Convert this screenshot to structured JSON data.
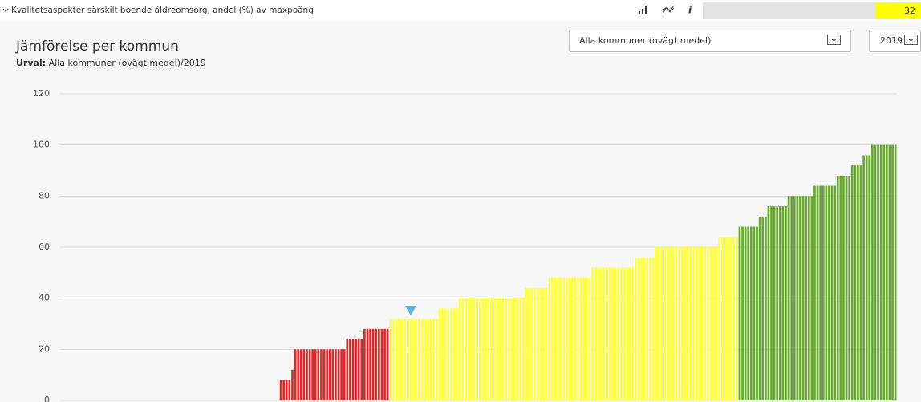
{
  "header": {
    "title": "Kvalitetsaspekter särskilt boende äldreomsorg, andel (%) av maxpoäng",
    "value": 32
  },
  "panel": {
    "title": "Jämförelse per kommun",
    "selection_label": "Urval:",
    "selection": "Alla kommuner (ovägt medel)/2019",
    "dropdown": "Alla kommuner (ovägt medel)",
    "year": "2019"
  },
  "chart_data": {
    "type": "bar",
    "ylim": [
      0,
      120
    ],
    "yticks": [
      0,
      20,
      40,
      60,
      80,
      100,
      120
    ],
    "grid": true,
    "series": [
      {
        "color": "#d62b2b",
        "values": [
          0,
          0,
          0,
          0,
          0,
          0,
          0,
          0,
          0,
          0,
          0,
          0,
          0,
          0,
          0,
          0,
          0,
          0,
          0,
          0,
          0,
          0,
          0,
          0,
          0,
          0,
          0,
          0,
          0,
          0,
          0,
          0,
          0,
          0,
          0,
          0,
          0,
          0,
          0,
          0,
          0,
          0,
          0,
          0,
          0,
          0,
          0,
          0,
          0,
          0,
          0,
          0,
          0,
          0,
          0,
          0,
          0,
          0,
          0,
          0,
          0,
          0,
          0,
          0,
          0,
          0,
          0,
          0,
          0,
          0,
          0,
          0,
          0,
          0,
          0,
          0,
          8,
          8,
          8,
          8,
          12,
          20,
          20,
          20,
          20,
          20,
          20,
          20,
          20,
          20,
          20,
          20,
          20,
          20,
          20,
          20,
          20,
          20,
          20,
          24,
          24,
          24,
          24,
          24,
          24,
          28,
          28,
          28,
          28,
          28,
          28,
          28,
          28,
          28
        ]
      },
      {
        "color": "#ffff3c",
        "values": [
          32,
          32,
          32,
          32,
          32,
          32,
          32,
          32,
          32,
          32,
          32,
          32,
          32,
          32,
          32,
          32,
          32,
          36,
          36,
          36,
          36,
          36,
          36,
          36,
          40,
          40,
          40,
          40,
          40,
          40,
          40,
          40,
          40,
          40,
          40,
          40,
          40,
          40,
          40,
          40,
          40,
          40,
          40,
          40,
          40,
          40,
          40,
          44,
          44,
          44,
          44,
          44,
          44,
          44,
          44,
          48,
          48,
          48,
          48,
          48,
          48,
          48,
          48,
          48,
          48,
          48,
          48,
          48,
          48,
          48,
          52,
          52,
          52,
          52,
          52,
          52,
          52,
          52,
          52,
          52,
          52,
          52,
          52,
          52,
          52,
          56,
          56,
          56,
          56,
          56,
          56,
          56,
          60,
          60,
          60,
          60,
          60,
          60,
          60,
          60,
          60,
          60,
          60,
          60,
          60,
          60,
          60,
          60,
          60,
          60,
          60,
          60,
          60,
          60,
          64,
          64,
          64,
          64,
          64,
          64,
          64
        ]
      },
      {
        "color": "#66a82d",
        "values": [
          68,
          68,
          68,
          68,
          68,
          68,
          68,
          72,
          72,
          72,
          76,
          76,
          76,
          76,
          76,
          76,
          76,
          80,
          80,
          80,
          80,
          80,
          80,
          80,
          80,
          80,
          84,
          84,
          84,
          84,
          84,
          84,
          84,
          84,
          88,
          88,
          88,
          88,
          88,
          92,
          92,
          92,
          92,
          96,
          96,
          96,
          100,
          100,
          100,
          100,
          100,
          100,
          100,
          100,
          100
        ]
      }
    ]
  }
}
